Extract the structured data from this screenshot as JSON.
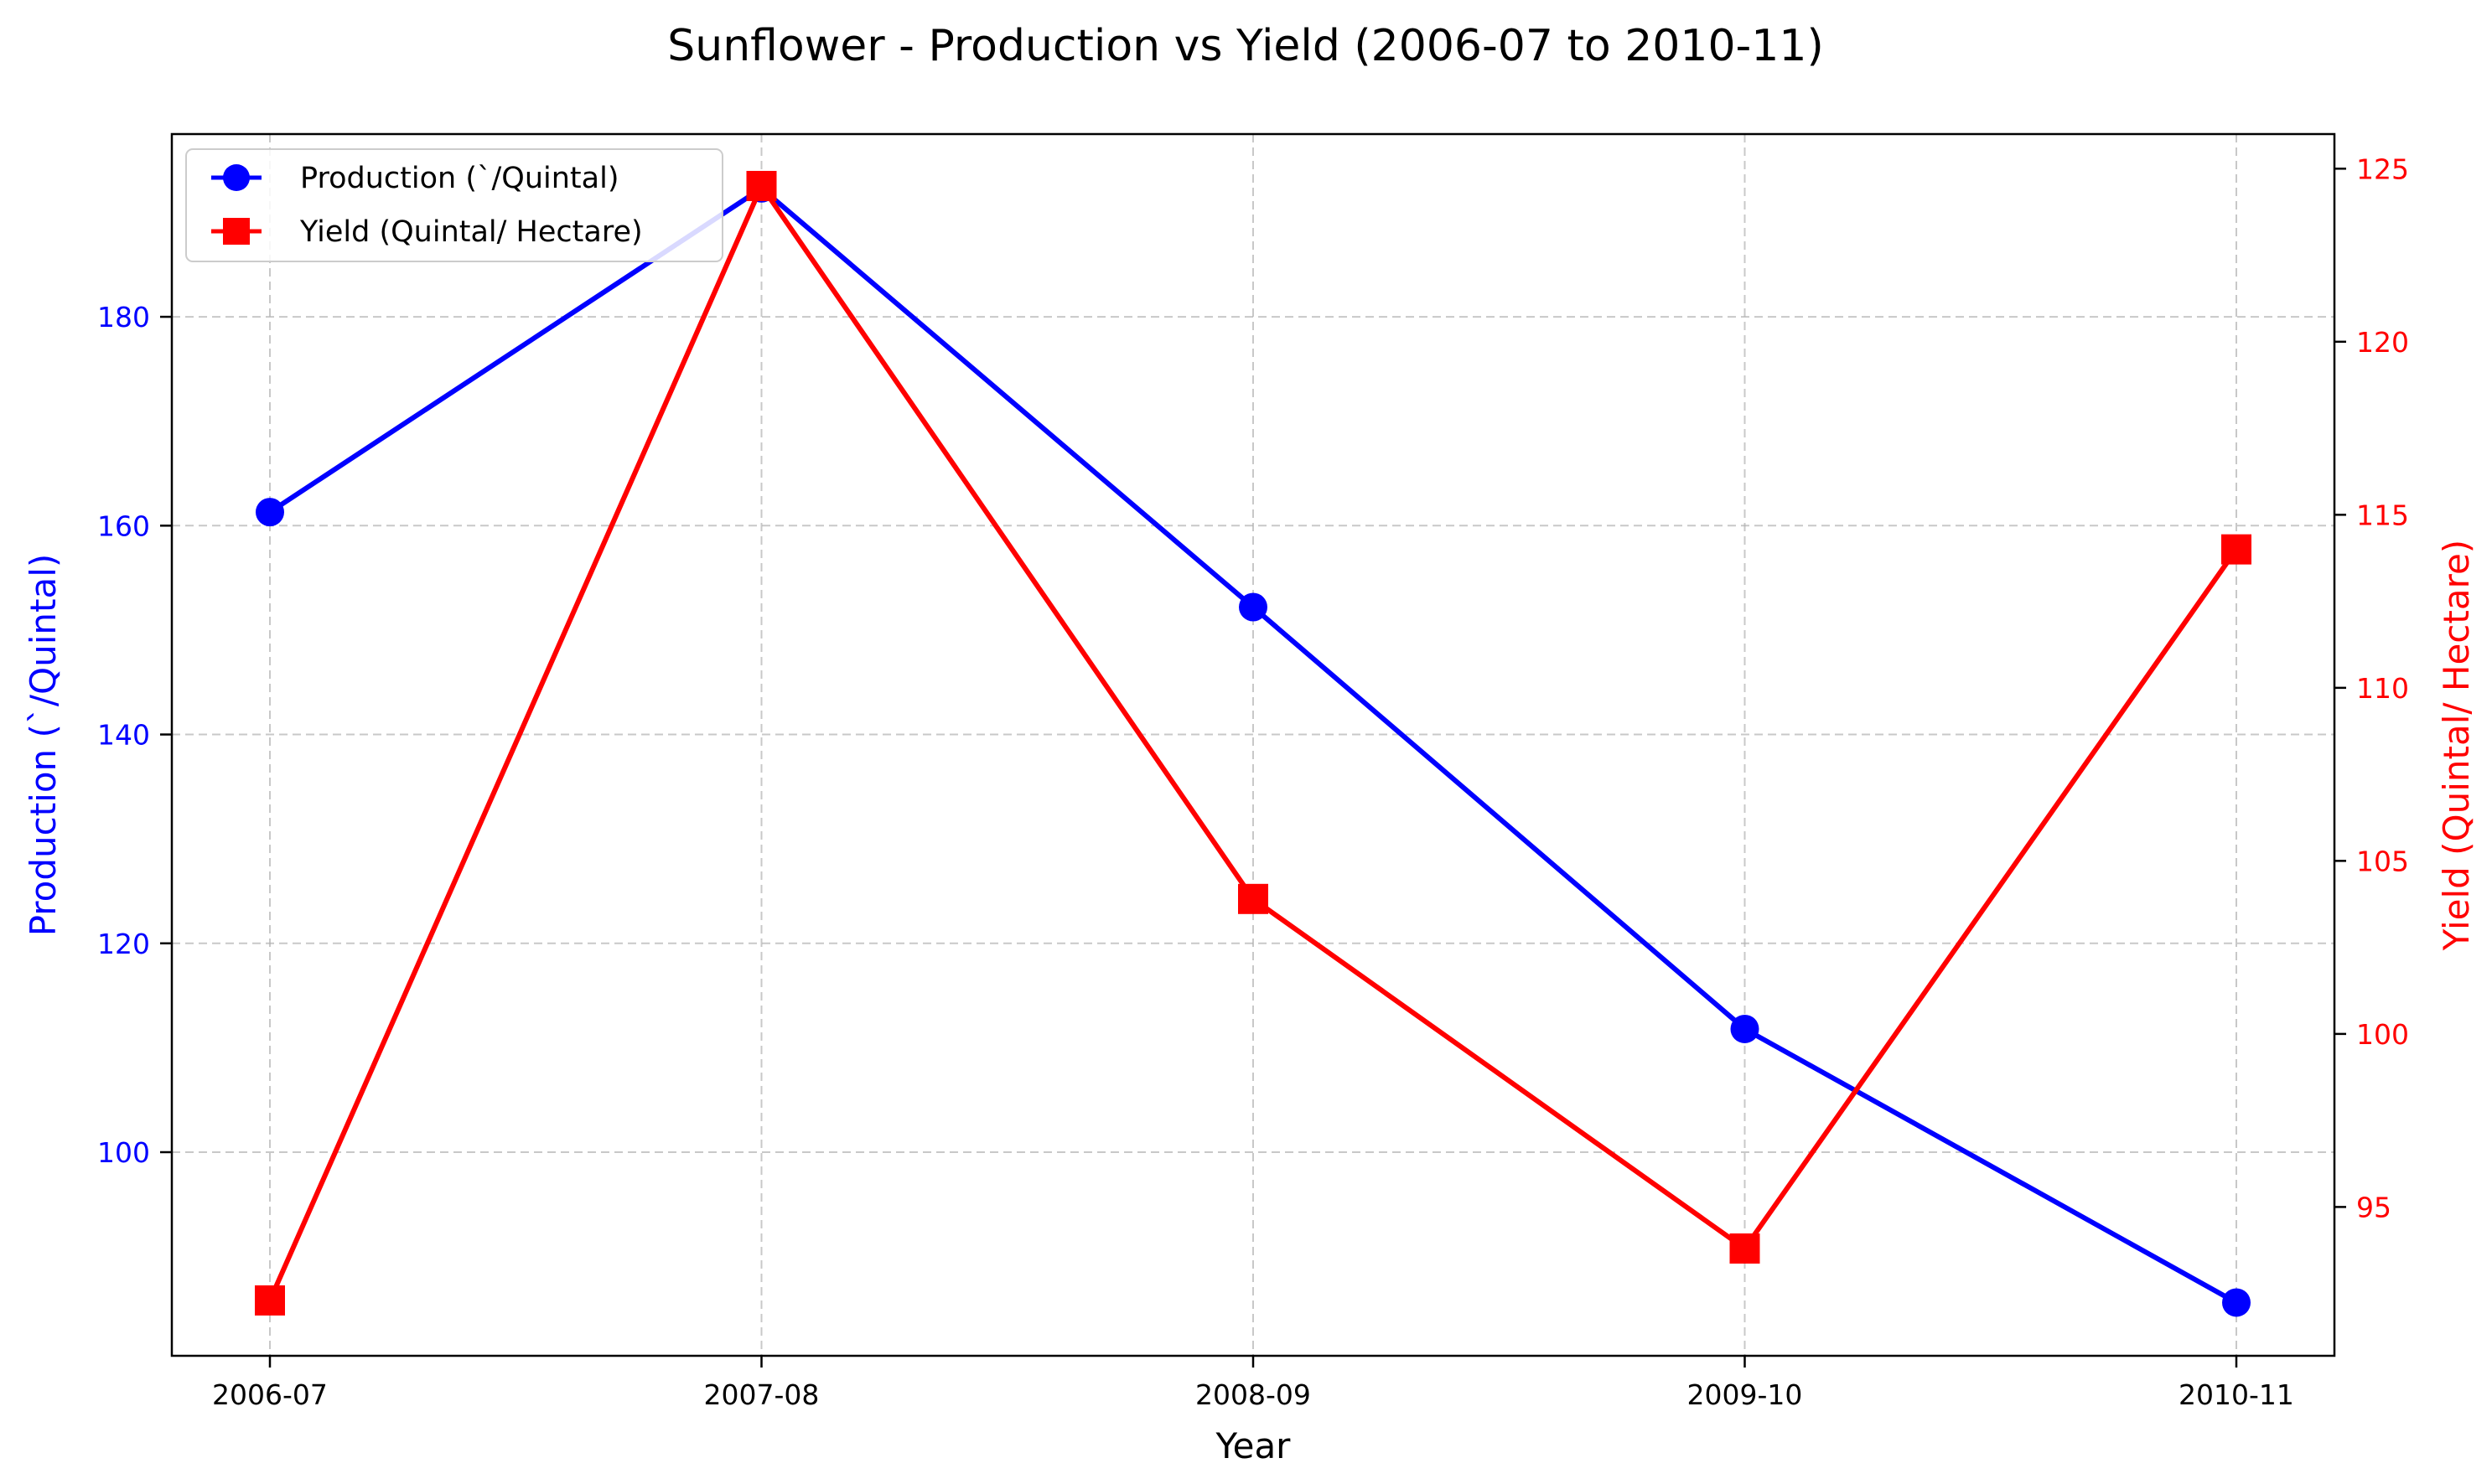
{
  "chart_data": {
    "type": "line",
    "title": "Sunflower - Production vs Yield (2006-07 to 2010-11)",
    "xlabel": "Year",
    "ylabel_left": "Production (`/Quintal)",
    "ylabel_right": "Yield (Quintal/ Hectare)",
    "categories": [
      "2006-07",
      "2007-08",
      "2008-09",
      "2009-10",
      "2010-11"
    ],
    "grid": true,
    "legend_position": "top-left",
    "left_axis": {
      "ylim": [
        80.5,
        197.5
      ],
      "ticks": [
        100,
        120,
        140,
        160,
        180
      ],
      "color": "#0000ff"
    },
    "right_axis": {
      "ylim": [
        90.7,
        126
      ],
      "ticks": [
        95,
        100,
        105,
        110,
        115,
        120,
        125
      ],
      "color": "#ff0000"
    },
    "series": [
      {
        "name": "Production (`/Quintal)",
        "axis": "left",
        "color": "#0000ff",
        "marker": "circle",
        "values": [
          161.3,
          192.3,
          152.2,
          111.8,
          85.6
        ]
      },
      {
        "name": "Yield (Quintal/ Hectare)",
        "axis": "right",
        "color": "#ff0000",
        "marker": "square",
        "values": [
          92.3,
          124.5,
          103.9,
          93.8,
          114.0
        ]
      }
    ]
  }
}
